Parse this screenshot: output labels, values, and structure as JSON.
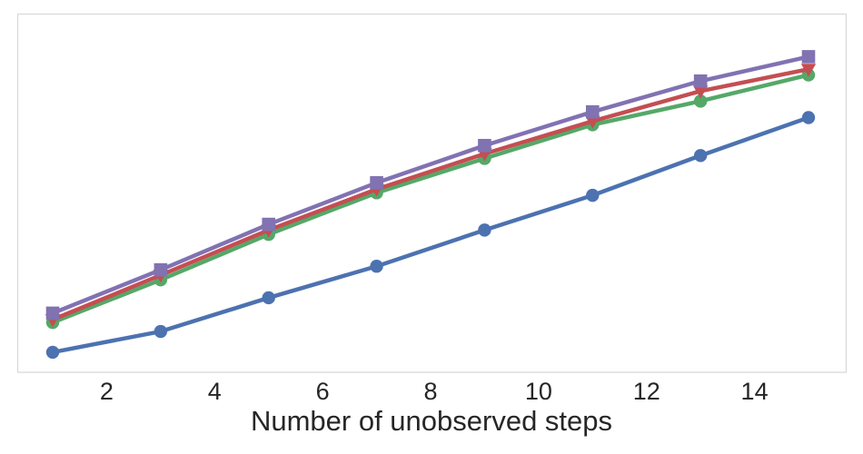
{
  "figure": {
    "background_color": "#ffffff",
    "plot_border_color": "#d9d9d9",
    "text_color": "#262626",
    "title": "",
    "legend_visible": false
  },
  "chart_data": {
    "type": "line",
    "title": "",
    "xlabel": "Number of unobserved steps",
    "ylabel": "",
    "x": [
      1,
      3,
      5,
      7,
      9,
      11,
      13,
      15
    ],
    "x_ticks": [
      2,
      4,
      6,
      8,
      10,
      12,
      14
    ],
    "xlim": [
      0.34,
      15.71
    ],
    "ylim": [
      0,
      1
    ],
    "grid": false,
    "legend": "none",
    "y_axis_note": "no y-axis ticks or labels shown in source; values are normalized to plot height (0 = bottom of axes, 1 = top of axes)",
    "series": [
      {
        "name": "blue-circle",
        "color": "#4C72B0",
        "marker": "circle",
        "values": [
          0.056,
          0.114,
          0.208,
          0.296,
          0.397,
          0.494,
          0.605,
          0.711
        ]
      },
      {
        "name": "green-circle",
        "color": "#55A868",
        "marker": "circle",
        "values": [
          0.139,
          0.258,
          0.385,
          0.501,
          0.597,
          0.691,
          0.757,
          0.83
        ]
      },
      {
        "name": "red-triangle-down",
        "color": "#C44E52",
        "marker": "triangle-down",
        "values": [
          0.147,
          0.271,
          0.397,
          0.511,
          0.61,
          0.701,
          0.785,
          0.846
        ]
      },
      {
        "name": "purple-square",
        "color": "#8172B2",
        "marker": "square",
        "values": [
          0.165,
          0.286,
          0.413,
          0.529,
          0.633,
          0.727,
          0.813,
          0.881
        ]
      }
    ]
  }
}
